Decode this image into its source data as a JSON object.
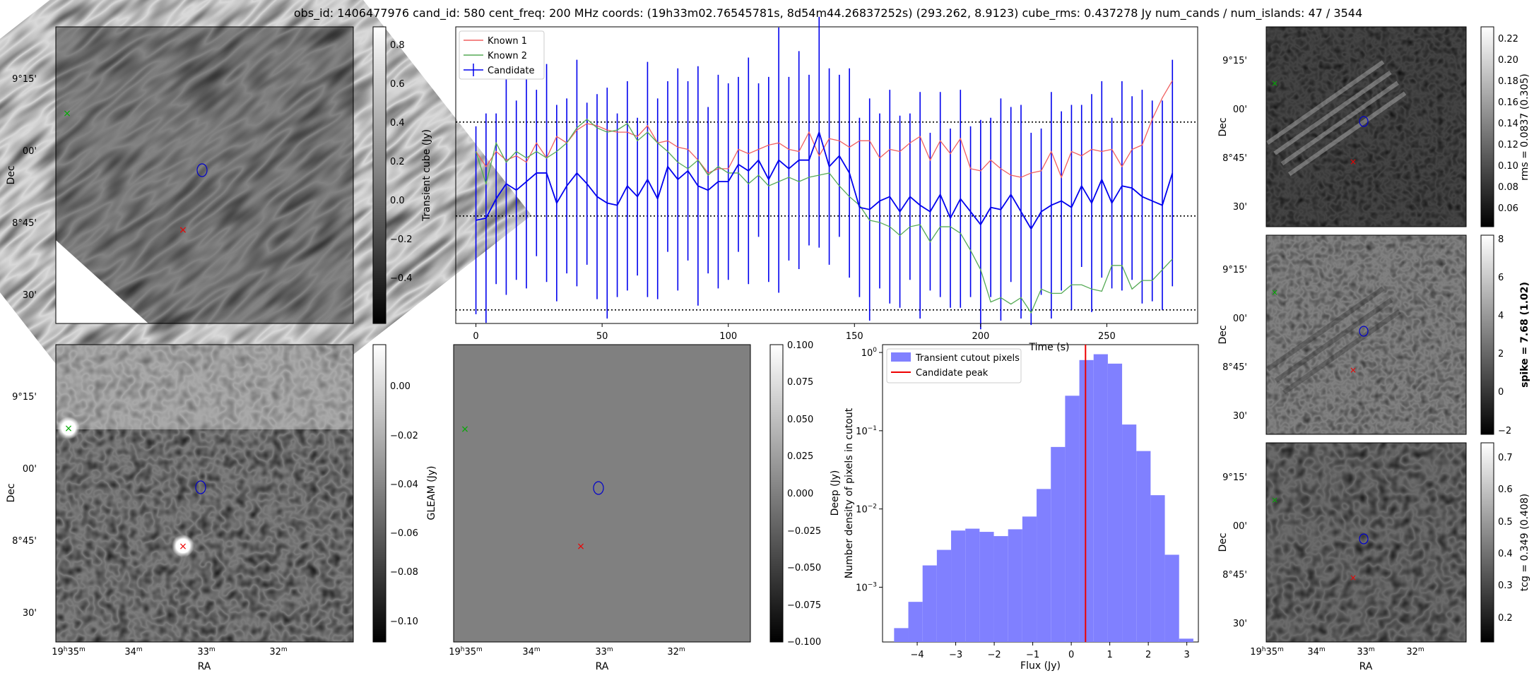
{
  "header": {
    "title": "obs_id: 1406477976 cand_id: 580 cent_freq: 200 MHz coords: (19h33m02.76545781s, 8d54m44.26837252s) (293.262, 8.9123) cube_rms: 0.437278 Jy num_cands / num_islands: 47 / 3544"
  },
  "common": {
    "ra_label": "RA",
    "dec_label": "Dec",
    "ra_ticks": [
      {
        "h": "19",
        "hs": "h",
        "m": "35",
        "ms": "m"
      },
      {
        "h": "",
        "hs": "",
        "m": "34",
        "ms": "m"
      },
      {
        "h": "",
        "hs": "",
        "m": "33",
        "ms": "m"
      },
      {
        "h": "",
        "hs": "",
        "m": "32",
        "ms": "m"
      }
    ],
    "dec_ticks": [
      "9°15'",
      "00'",
      "8°45'",
      "30'"
    ]
  },
  "colors": {
    "known1": "#f06060",
    "known2": "#55aa55",
    "candidate": "#0000ee",
    "hist_fill": "#8080ff",
    "peak_line": "#ee0000"
  },
  "panels": {
    "transient": {
      "cbar_label": "Transient cube (Jy)",
      "cbar_ticks": [
        "0.8",
        "0.6",
        "0.4",
        "0.2",
        "0.0",
        "−0.2",
        "−0.4"
      ]
    },
    "deep": {
      "cbar_label": "Deep (Jy)",
      "cbar_ticks": [
        "0.00",
        "−0.02",
        "−0.04",
        "−0.06",
        "−0.08",
        "−0.10"
      ]
    },
    "gleam": {
      "cbar_label": "GLEAM (Jy)",
      "cbar_ticks": [
        "0.100",
        "0.075",
        "0.050",
        "0.025",
        "0.000",
        "−0.025",
        "−0.050",
        "−0.075",
        "−0.100"
      ]
    },
    "rms": {
      "cbar_label": "rms = 0.0837 (0.305)",
      "cbar_ticks": [
        "0.22",
        "0.20",
        "0.18",
        "0.16",
        "0.14",
        "0.12",
        "0.10",
        "0.08",
        "0.06"
      ]
    },
    "spike": {
      "cbar_label": "spike = 7.68 (1.02)",
      "cbar_ticks": [
        "8",
        "6",
        "4",
        "2",
        "0",
        "−2"
      ]
    },
    "tcg": {
      "cbar_label": "tcg = 0.349 (0.408)",
      "cbar_ticks": [
        "0.7",
        "0.6",
        "0.5",
        "0.4",
        "0.3",
        "0.2"
      ]
    }
  },
  "chart_data": [
    {
      "type": "line",
      "title": "",
      "xlabel": "Time (s)",
      "ylabel": "",
      "xlim": [
        -8,
        286
      ],
      "ylim": [
        -0.5,
        0.88
      ],
      "xticks": [
        "0",
        "50",
        "100",
        "150",
        "200",
        "250"
      ],
      "hlines": [
        0.437,
        0.0,
        -0.437
      ],
      "legend": [
        "Known 1",
        "Known 2",
        "Candidate"
      ],
      "x": [
        0,
        4,
        8,
        12,
        16,
        20,
        24,
        28,
        32,
        36,
        40,
        44,
        48,
        52,
        56,
        60,
        64,
        68,
        72,
        76,
        80,
        84,
        88,
        92,
        96,
        100,
        104,
        108,
        112,
        116,
        120,
        124,
        128,
        132,
        136,
        140,
        144,
        148,
        152,
        156,
        160,
        164,
        168,
        172,
        176,
        180,
        184,
        188,
        192,
        196,
        200,
        204,
        208,
        212,
        216,
        220,
        224,
        228,
        232,
        236,
        240,
        244,
        248,
        252,
        256,
        260,
        264,
        268,
        272,
        276
      ],
      "series": [
        {
          "name": "Known 1",
          "values": [
            0.3,
            0.23,
            0.3,
            0.26,
            0.28,
            0.25,
            0.34,
            0.27,
            0.37,
            0.34,
            0.4,
            0.43,
            0.42,
            0.4,
            0.39,
            0.39,
            0.37,
            0.42,
            0.34,
            0.35,
            0.32,
            0.31,
            0.26,
            0.2,
            0.22,
            0.22,
            0.31,
            0.29,
            0.31,
            0.33,
            0.34,
            0.31,
            0.3,
            0.39,
            0.28,
            0.36,
            0.35,
            0.32,
            0.35,
            0.35,
            0.27,
            0.31,
            0.3,
            0.34,
            0.37,
            0.26,
            0.35,
            0.29,
            0.36,
            0.22,
            0.21,
            0.26,
            0.22,
            0.19,
            0.18,
            0.2,
            0.21,
            0.3,
            0.18,
            0.3,
            0.28,
            0.31,
            0.3,
            0.31,
            0.23,
            0.31,
            0.33,
            0.45,
            0.55,
            0.63
          ]
        },
        {
          "name": "Known 2",
          "values": [
            0.3,
            0.15,
            0.34,
            0.25,
            0.3,
            0.27,
            0.3,
            0.27,
            0.3,
            0.34,
            0.41,
            0.45,
            0.41,
            0.39,
            0.4,
            0.43,
            0.35,
            0.39,
            0.34,
            0.3,
            0.25,
            0.22,
            0.26,
            0.19,
            0.23,
            0.2,
            0.2,
            0.15,
            0.19,
            0.14,
            0.16,
            0.18,
            0.16,
            0.18,
            0.19,
            0.2,
            0.14,
            0.09,
            0.05,
            -0.02,
            -0.03,
            -0.05,
            -0.09,
            -0.05,
            -0.04,
            -0.12,
            -0.05,
            -0.05,
            -0.08,
            -0.16,
            -0.25,
            -0.4,
            -0.38,
            -0.41,
            -0.38,
            -0.45,
            -0.34,
            -0.36,
            -0.36,
            -0.32,
            -0.32,
            -0.34,
            -0.35,
            -0.23,
            -0.23,
            -0.34,
            -0.3,
            -0.3,
            -0.25,
            -0.2
          ]
        },
        {
          "name": "Candidate",
          "values": [
            -0.02,
            -0.01,
            0.08,
            0.15,
            0.12,
            0.16,
            0.2,
            0.2,
            0.06,
            0.14,
            0.2,
            0.15,
            0.09,
            0.06,
            0.05,
            0.14,
            0.09,
            0.17,
            0.08,
            0.23,
            0.17,
            0.21,
            0.14,
            0.12,
            0.16,
            0.16,
            0.24,
            0.21,
            0.26,
            0.17,
            0.26,
            0.22,
            0.26,
            0.26,
            0.39,
            0.23,
            0.28,
            0.2,
            0.04,
            0.03,
            0.07,
            0.09,
            0.02,
            0.09,
            0.05,
            0.02,
            0.1,
            -0.01,
            0.08,
            0.02,
            -0.04,
            0.04,
            0.03,
            0.1,
            0.02,
            -0.06,
            0.02,
            0.05,
            0.07,
            0.04,
            0.14,
            0.06,
            0.17,
            0.06,
            0.14,
            0.13,
            0.09,
            0.07,
            0.05,
            0.2
          ]
        }
      ],
      "error": 0.437,
      "error_spread": [
        0,
        0.05,
        -0.04,
        0.08,
        -0.02,
        0.06,
        -0.05,
        0.07,
        0.02,
        -0.03,
        0.09,
        -0.06,
        0.04,
        0.1,
        -0.01,
        0.05,
        -0.07,
        0.11,
        0.03,
        -0.04,
        0.08,
        -0.02,
        0.12,
        -0.05,
        0.06,
        0.02,
        -0.03,
        0.09,
        -0.08,
        0.04,
        0.18,
        -0.01,
        0.07,
        -0.04,
        0.1,
        0.02,
        -0.06,
        0.05,
        -0.02,
        0.08,
        -0.03,
        0.06,
        0.01,
        -0.05,
        0.09,
        -0.07,
        0.04,
        -0.02,
        0.07,
        -0.04,
        0.05,
        -0.02,
        0.08,
        -0.03,
        0.06,
        0.01,
        -0.05,
        0.09,
        -0.02,
        0.04,
        -0.06,
        0.07,
        0.02,
        -0.04,
        0.05,
        -0.01,
        0.06,
        0.03,
        0.05,
        0.09
      ]
    },
    {
      "type": "bar",
      "title": "",
      "xlabel": "Flux (Jy)",
      "ylabel": "Number density of pixels in cutout",
      "yscale": "log",
      "xlim": [
        -4.9,
        3.3
      ],
      "ylim_exp": [
        -3.7,
        0.1
      ],
      "xticks": [
        "−4",
        "−3",
        "−2",
        "−1",
        "0",
        "1",
        "2",
        "3"
      ],
      "ytick_exp": [
        "0",
        "−1",
        "−2",
        "−3"
      ],
      "bin_start": -4.6,
      "bin_width": 0.37,
      "values": [
        0.0003,
        0.00065,
        0.0019,
        0.003,
        0.0053,
        0.0056,
        0.0051,
        0.0045,
        0.0055,
        0.008,
        0.018,
        0.062,
        0.28,
        0.8,
        0.95,
        0.72,
        0.12,
        0.055,
        0.015,
        0.0026,
        0.00022
      ],
      "peak": 0.37,
      "legend": [
        "Transient cutout pixels",
        "Candidate peak"
      ]
    }
  ]
}
